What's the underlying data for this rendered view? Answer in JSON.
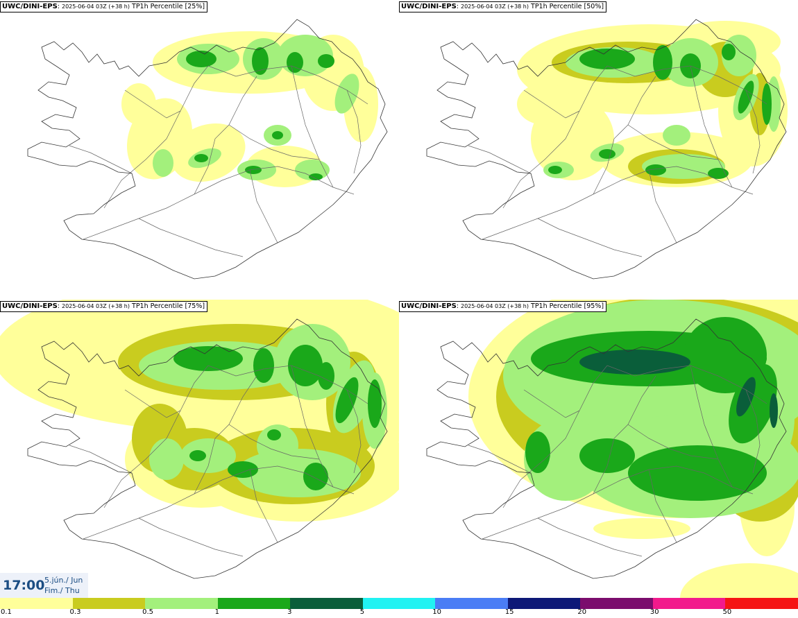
{
  "panels": [
    {
      "model": "UWC/DINI-EPS",
      "run": "2025-06-04 03Z (+38 h)",
      "field": "TP1h Percentile [25%]",
      "percentile": 25
    },
    {
      "model": "UWC/DINI-EPS",
      "run": "2025-06-04 03Z (+38 h)",
      "field": "TP1h Percentile [50%]",
      "percentile": 50
    },
    {
      "model": "UWC/DINI-EPS",
      "run": "2025-06-04 03Z (+38 h)",
      "field": "TP1h Percentile [75%]",
      "percentile": 75
    },
    {
      "model": "UWC/DINI-EPS",
      "run": "2025-06-04 03Z (+38 h)",
      "field": "TP1h Percentile [95%]",
      "percentile": 95
    }
  ],
  "valid_time": {
    "time": "17:00",
    "date_line1": "5.jún./ Jun",
    "date_line2": "Fim./ Thu"
  },
  "legend": {
    "colors": [
      "#ffff9a",
      "#c9cc1f",
      "#a3f07c",
      "#1aa81a",
      "#0a5e3a",
      "#21f2f2",
      "#4a7df5",
      "#0d1877",
      "#7b0c6d",
      "#f21a8c",
      "#f51414"
    ],
    "ticks": [
      "0.1",
      "0.3",
      "0.5",
      "1",
      "3",
      "5",
      "10",
      "15",
      "20",
      "30",
      "50"
    ]
  },
  "map_colors": {
    "coast": "#333333",
    "road": "#666666",
    "background": "#ffffff"
  }
}
